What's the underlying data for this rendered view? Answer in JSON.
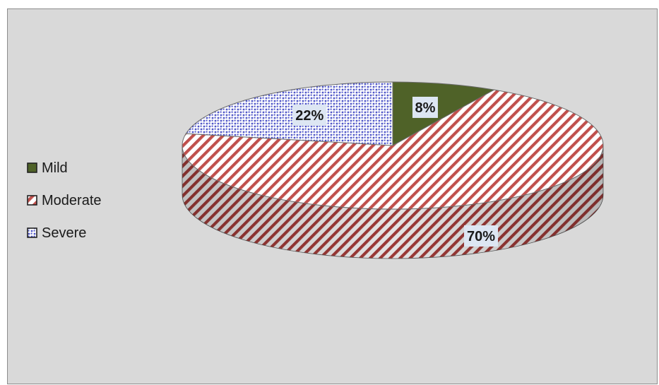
{
  "chart_data": {
    "type": "pie",
    "style": "3d",
    "categories": [
      "Mild",
      "Moderate",
      "Severe"
    ],
    "values": [
      8,
      70,
      22
    ],
    "data_labels": [
      "8%",
      "70%",
      "22%"
    ],
    "legend_position": "left",
    "colors": [
      "#4f6228",
      "#c0504d",
      "#4f56c8"
    ],
    "patterns": [
      "solid",
      "diagonal-stripes",
      "dots"
    ]
  }
}
